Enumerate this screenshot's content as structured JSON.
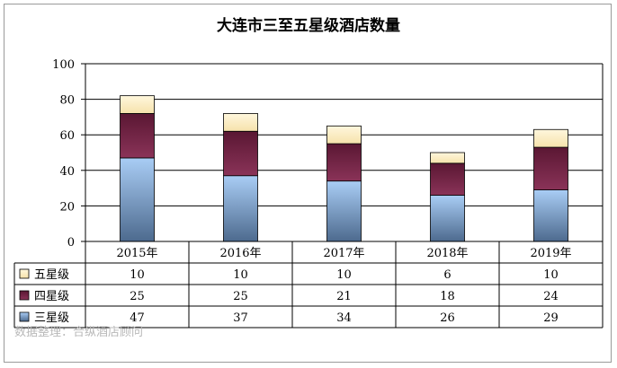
{
  "title": "大连市三至五星级酒店数量",
  "source_note": "数据整理：合纵酒店顾问",
  "colors": {
    "five_star": "#fff2cc",
    "four_star": "#6b1f3f",
    "three_star_top": "#a9cdf5",
    "three_star_bottom": "#4d6a8e",
    "grid": "#000000"
  },
  "chart_data": {
    "type": "bar",
    "stacked": true,
    "categories": [
      "2015年",
      "2016年",
      "2017年",
      "2018年",
      "2019年"
    ],
    "series": [
      {
        "name": "三星级",
        "values": [
          47,
          37,
          34,
          26,
          29
        ],
        "color": "three-star-gradient"
      },
      {
        "name": "四星级",
        "values": [
          25,
          25,
          21,
          18,
          24
        ],
        "color": "#6b1f3f"
      },
      {
        "name": "五星级",
        "values": [
          10,
          10,
          10,
          6,
          10
        ],
        "color": "#fff2cc"
      }
    ],
    "ylim": [
      0,
      100
    ],
    "yticks": [
      0,
      20,
      40,
      60,
      80,
      100
    ],
    "grid": true,
    "legend": "data-table-left",
    "table_row_order": [
      "五星级",
      "四星级",
      "三星级"
    ]
  }
}
